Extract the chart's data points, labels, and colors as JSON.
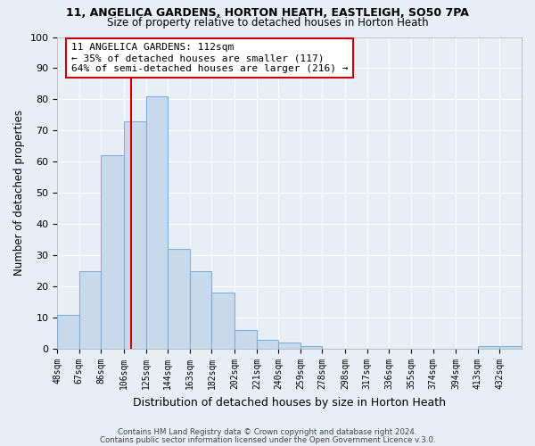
{
  "title1": "11, ANGELICA GARDENS, HORTON HEATH, EASTLEIGH, SO50 7PA",
  "title2": "Size of property relative to detached houses in Horton Heath",
  "xlabel": "Distribution of detached houses by size in Horton Heath",
  "ylabel": "Number of detached properties",
  "bar_values": [
    11,
    25,
    62,
    73,
    81,
    32,
    25,
    18,
    6,
    3,
    2,
    1,
    0,
    0,
    0,
    0,
    0,
    0,
    0,
    1,
    1
  ],
  "bin_edges": [
    48,
    67,
    86,
    106,
    125,
    144,
    163,
    182,
    202,
    221,
    240,
    259,
    278,
    298,
    317,
    336,
    355,
    374,
    394,
    413,
    432,
    451
  ],
  "tick_labels": [
    "48sqm",
    "67sqm",
    "86sqm",
    "106sqm",
    "125sqm",
    "144sqm",
    "163sqm",
    "182sqm",
    "202sqm",
    "221sqm",
    "240sqm",
    "259sqm",
    "278sqm",
    "298sqm",
    "317sqm",
    "336sqm",
    "355sqm",
    "374sqm",
    "394sqm",
    "413sqm",
    "432sqm"
  ],
  "bar_color": "#c9d9ec",
  "bar_edge_color": "#7fafd4",
  "bg_color": "#e8eef5",
  "grid_color": "#ffffff",
  "vline_x": 112,
  "vline_color": "#cc0000",
  "ylim": [
    0,
    100
  ],
  "yticks": [
    0,
    10,
    20,
    30,
    40,
    50,
    60,
    70,
    80,
    90,
    100
  ],
  "annotation_title": "11 ANGELICA GARDENS: 112sqm",
  "annotation_line1": "← 35% of detached houses are smaller (117)",
  "annotation_line2": "64% of semi-detached houses are larger (216) →",
  "annotation_box_color": "#ffffff",
  "annotation_edge_color": "#cc0000",
  "footer1": "Contains HM Land Registry data © Crown copyright and database right 2024.",
  "footer2": "Contains public sector information licensed under the Open Government Licence v.3.0."
}
